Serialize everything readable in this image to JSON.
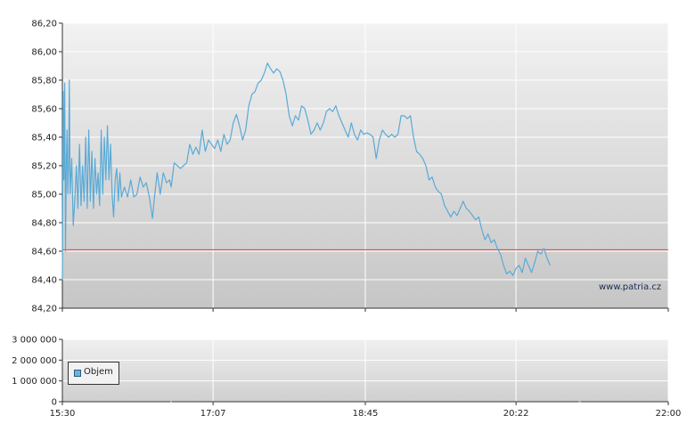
{
  "chart_data": [
    {
      "type": "line",
      "title": "",
      "xlabel": "",
      "ylabel": "",
      "ylim": [
        84.2,
        86.2
      ],
      "yticks": [
        "84,20",
        "84,40",
        "84,60",
        "84,80",
        "85,00",
        "85,20",
        "85,40",
        "85,60",
        "85,80",
        "86,00",
        "86,20"
      ],
      "ytick_values": [
        84.2,
        84.4,
        84.6,
        84.8,
        85.0,
        85.2,
        85.4,
        85.6,
        85.8,
        86.0,
        86.2
      ],
      "xticks": [
        "15:30",
        "17:07",
        "18:45",
        "20:22",
        "22:00"
      ],
      "xtick_minutes": [
        930,
        1027,
        1125,
        1222,
        1320
      ],
      "xlim_minutes": [
        930,
        1320
      ],
      "reference_line": {
        "value": 84.61,
        "color": "#e04040"
      },
      "series": [
        {
          "color": "#5aaad6",
          "points": [
            [
              930.0,
              84.4
            ],
            [
              930.5,
              85.72
            ],
            [
              931.0,
              85.1
            ],
            [
              931.5,
              85.78
            ],
            [
              932.0,
              84.6
            ],
            [
              932.5,
              85.2
            ],
            [
              933.0,
              85.45
            ],
            [
              933.5,
              85.0
            ],
            [
              934.0,
              85.2
            ],
            [
              934.5,
              85.8
            ],
            [
              935.0,
              85.0
            ],
            [
              936.0,
              85.25
            ],
            [
              937.0,
              84.78
            ],
            [
              938.0,
              84.95
            ],
            [
              939.0,
              85.2
            ],
            [
              940.0,
              84.9
            ],
            [
              941.0,
              85.35
            ],
            [
              942.0,
              84.92
            ],
            [
              943.0,
              85.2
            ],
            [
              944.0,
              84.95
            ],
            [
              945.0,
              85.4
            ],
            [
              946.0,
              84.9
            ],
            [
              947.0,
              85.45
            ],
            [
              948.0,
              84.95
            ],
            [
              949.0,
              85.3
            ],
            [
              950.0,
              84.9
            ],
            [
              951.0,
              85.25
            ],
            [
              952.0,
              85.0
            ],
            [
              953.0,
              85.15
            ],
            [
              954.0,
              84.92
            ],
            [
              955.0,
              85.45
            ],
            [
              956.0,
              85.0
            ],
            [
              957.0,
              85.4
            ],
            [
              958.0,
              85.1
            ],
            [
              959.0,
              85.48
            ],
            [
              960.0,
              85.1
            ],
            [
              961.0,
              85.35
            ],
            [
              962.0,
              85.0
            ],
            [
              963.0,
              84.84
            ],
            [
              964.0,
              85.1
            ],
            [
              965.0,
              85.18
            ],
            [
              966.0,
              84.95
            ],
            [
              967.0,
              85.15
            ],
            [
              968.0,
              84.98
            ],
            [
              970.0,
              85.05
            ],
            [
              972.0,
              84.98
            ],
            [
              974.0,
              85.1
            ],
            [
              976.0,
              84.98
            ],
            [
              978.0,
              85.0
            ],
            [
              980.0,
              85.12
            ],
            [
              982.0,
              85.05
            ],
            [
              984.0,
              85.08
            ],
            [
              986.0,
              84.98
            ],
            [
              988.0,
              84.83
            ],
            [
              989.0,
              84.95
            ],
            [
              991.0,
              85.15
            ],
            [
              993.0,
              85.0
            ],
            [
              995.0,
              85.15
            ],
            [
              997.0,
              85.08
            ],
            [
              999.0,
              85.1
            ],
            [
              1000.0,
              85.05
            ],
            [
              1002.0,
              85.22
            ],
            [
              1004.0,
              85.2
            ],
            [
              1006.0,
              85.18
            ],
            [
              1008.0,
              85.2
            ],
            [
              1010.0,
              85.22
            ],
            [
              1012.0,
              85.35
            ],
            [
              1014.0,
              85.28
            ],
            [
              1016.0,
              85.33
            ],
            [
              1018.0,
              85.28
            ],
            [
              1020.0,
              85.45
            ],
            [
              1022.0,
              85.3
            ],
            [
              1024.0,
              85.38
            ],
            [
              1026.0,
              85.35
            ],
            [
              1028.0,
              85.32
            ],
            [
              1030.0,
              85.38
            ],
            [
              1032.0,
              85.3
            ],
            [
              1034.0,
              85.42
            ],
            [
              1036.0,
              85.35
            ],
            [
              1038.0,
              85.38
            ],
            [
              1040.0,
              85.5
            ],
            [
              1042.0,
              85.56
            ],
            [
              1044.0,
              85.48
            ],
            [
              1046.0,
              85.38
            ],
            [
              1048.0,
              85.45
            ],
            [
              1050.0,
              85.62
            ],
            [
              1052.0,
              85.7
            ],
            [
              1054.0,
              85.72
            ],
            [
              1056.0,
              85.78
            ],
            [
              1058.0,
              85.8
            ],
            [
              1060.0,
              85.85
            ],
            [
              1062.0,
              85.92
            ],
            [
              1064.0,
              85.88
            ],
            [
              1066.0,
              85.85
            ],
            [
              1068.0,
              85.88
            ],
            [
              1070.0,
              85.86
            ],
            [
              1072.0,
              85.8
            ],
            [
              1074.0,
              85.7
            ],
            [
              1076.0,
              85.55
            ],
            [
              1078.0,
              85.48
            ],
            [
              1080.0,
              85.55
            ],
            [
              1082.0,
              85.52
            ],
            [
              1084.0,
              85.62
            ],
            [
              1086.0,
              85.6
            ],
            [
              1088.0,
              85.52
            ],
            [
              1090.0,
              85.42
            ],
            [
              1092.0,
              85.45
            ],
            [
              1094.0,
              85.5
            ],
            [
              1096.0,
              85.45
            ],
            [
              1098.0,
              85.5
            ],
            [
              1100.0,
              85.58
            ],
            [
              1102.0,
              85.6
            ],
            [
              1104.0,
              85.58
            ],
            [
              1106.0,
              85.62
            ],
            [
              1108.0,
              85.55
            ],
            [
              1110.0,
              85.5
            ],
            [
              1112.0,
              85.45
            ],
            [
              1114.0,
              85.4
            ],
            [
              1116.0,
              85.5
            ],
            [
              1118.0,
              85.42
            ],
            [
              1120.0,
              85.38
            ],
            [
              1122.0,
              85.45
            ],
            [
              1124.0,
              85.42
            ],
            [
              1126.0,
              85.43
            ],
            [
              1128.0,
              85.42
            ],
            [
              1130.0,
              85.4
            ],
            [
              1132.0,
              85.25
            ],
            [
              1134.0,
              85.38
            ],
            [
              1136.0,
              85.45
            ],
            [
              1138.0,
              85.42
            ],
            [
              1140.0,
              85.4
            ],
            [
              1142.0,
              85.42
            ],
            [
              1144.0,
              85.4
            ],
            [
              1146.0,
              85.42
            ],
            [
              1148.0,
              85.55
            ],
            [
              1150.0,
              85.55
            ],
            [
              1152.0,
              85.53
            ],
            [
              1154.0,
              85.55
            ],
            [
              1156.0,
              85.4
            ],
            [
              1158.0,
              85.3
            ],
            [
              1160.0,
              85.28
            ],
            [
              1162.0,
              85.25
            ],
            [
              1164.0,
              85.2
            ],
            [
              1166.0,
              85.1
            ],
            [
              1168.0,
              85.12
            ],
            [
              1170.0,
              85.05
            ],
            [
              1172.0,
              85.02
            ],
            [
              1174.0,
              85.0
            ],
            [
              1176.0,
              84.92
            ],
            [
              1178.0,
              84.88
            ],
            [
              1180.0,
              84.84
            ],
            [
              1182.0,
              84.88
            ],
            [
              1184.0,
              84.85
            ],
            [
              1186.0,
              84.9
            ],
            [
              1188.0,
              84.95
            ],
            [
              1190.0,
              84.9
            ],
            [
              1192.0,
              84.88
            ],
            [
              1194.0,
              84.85
            ],
            [
              1196.0,
              84.82
            ],
            [
              1198.0,
              84.84
            ],
            [
              1200.0,
              84.75
            ],
            [
              1202.0,
              84.68
            ],
            [
              1204.0,
              84.72
            ],
            [
              1206.0,
              84.66
            ],
            [
              1208.0,
              84.68
            ],
            [
              1210.0,
              84.62
            ],
            [
              1212.0,
              84.58
            ],
            [
              1214.0,
              84.5
            ],
            [
              1216.0,
              84.44
            ],
            [
              1218.0,
              84.46
            ],
            [
              1220.0,
              84.43
            ],
            [
              1222.0,
              84.48
            ],
            [
              1224.0,
              84.5
            ],
            [
              1226.0,
              84.45
            ],
            [
              1228.0,
              84.55
            ],
            [
              1230.0,
              84.5
            ],
            [
              1232.0,
              84.45
            ],
            [
              1234.0,
              84.52
            ],
            [
              1236.0,
              84.6
            ],
            [
              1238.0,
              84.58
            ],
            [
              1240.0,
              84.62
            ],
            [
              1242.0,
              84.55
            ],
            [
              1244.0,
              84.5
            ]
          ]
        }
      ]
    },
    {
      "type": "bar",
      "title": "",
      "ylim": [
        0,
        3000000
      ],
      "yticks": [
        "0",
        "1 000 000",
        "2 000 000",
        "3 000 000"
      ],
      "ytick_values": [
        0,
        1000000,
        2000000,
        3000000
      ],
      "xticks": [
        "15:30",
        "17:07",
        "18:45",
        "20:22",
        "22:00"
      ],
      "xtick_minutes": [
        930,
        1027,
        1125,
        1222,
        1320
      ],
      "xlim_minutes": [
        930,
        1320
      ],
      "series": [
        {
          "name": "Objem",
          "color": "#6eb3de",
          "points": [
            [
              1000,
              30000
            ],
            [
              1263,
              25000
            ]
          ]
        }
      ]
    }
  ],
  "legend": {
    "label": "Objem",
    "color": "#6eb3de"
  },
  "watermark": "www.patria.cz"
}
